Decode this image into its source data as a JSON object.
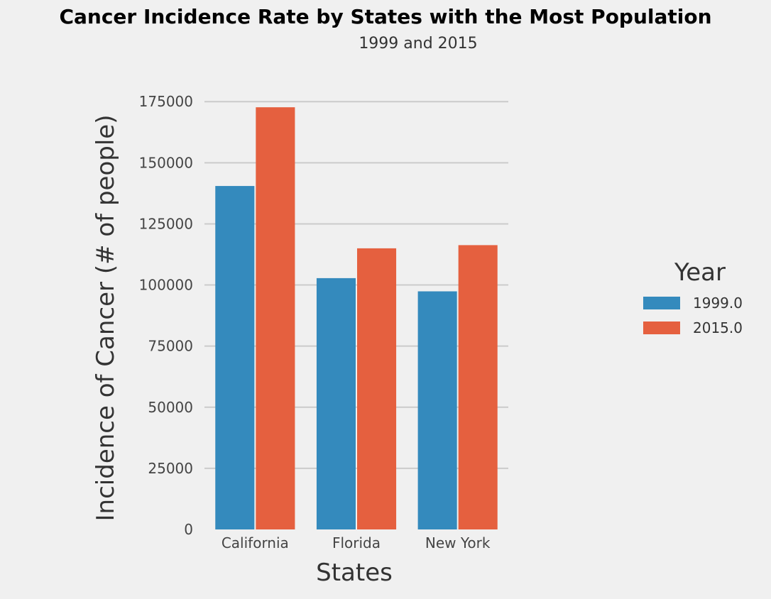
{
  "chart_data": {
    "type": "bar",
    "title": "Cancer Incidence Rate by States with the Most Population",
    "subtitle": "1999 and 2015",
    "xlabel": "States",
    "ylabel": "Incidence of Cancer (# of people)",
    "categories": [
      "California",
      "Florida",
      "New York"
    ],
    "series": [
      {
        "name": "1999.0",
        "color": "#348abd",
        "values": [
          140500,
          102800,
          97400
        ]
      },
      {
        "name": "2015.0",
        "color": "#e5603f",
        "values": [
          172700,
          115000,
          116300
        ]
      }
    ],
    "ylim": [
      0,
      180000
    ],
    "yticks": [
      0,
      25000,
      50000,
      75000,
      100000,
      125000,
      150000,
      175000
    ],
    "ytick_labels": [
      "0",
      "25000",
      "50000",
      "75000",
      "100000",
      "125000",
      "150000",
      "175000"
    ],
    "grid": "horizontal",
    "legend": {
      "title": "Year",
      "placement": "right"
    }
  }
}
